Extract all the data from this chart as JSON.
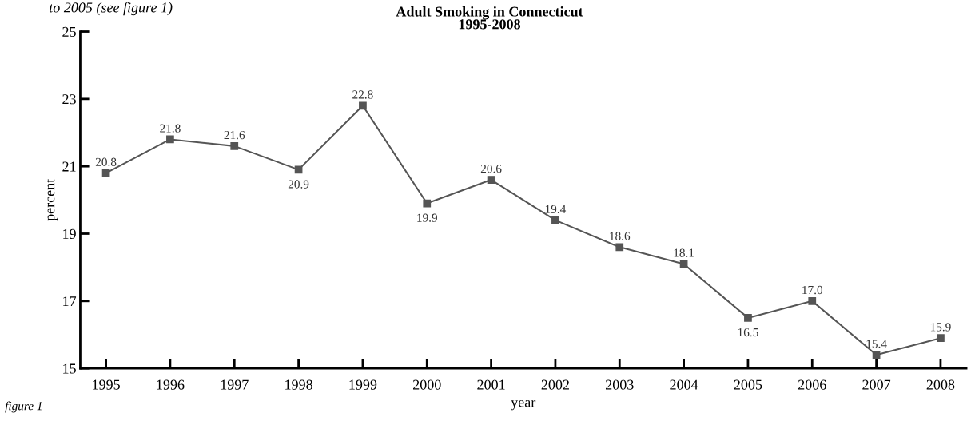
{
  "chart_data": {
    "type": "line",
    "title": "Adult Smoking in Connecticut",
    "subtitle": "1995-2008",
    "xlabel": "year",
    "ylabel": "percent",
    "annotations": [
      "to 2005 (see figure 1)",
      "figure 1"
    ],
    "categories": [
      "1995",
      "1996",
      "1997",
      "1998",
      "1999",
      "2000",
      "2001",
      "2002",
      "2003",
      "2004",
      "2005",
      "2006",
      "2007",
      "2008"
    ],
    "series": [
      {
        "color": "#555555",
        "values": [
          20.8,
          21.8,
          21.6,
          20.9,
          22.8,
          19.9,
          20.6,
          19.4,
          18.6,
          18.1,
          16.5,
          17.0,
          15.4,
          15.9
        ]
      }
    ],
    "value_labels": [
      "20.8",
      "21.8",
      "21.6",
      "20.9",
      "22.8",
      "19.9",
      "20.6",
      "19.4",
      "18.6",
      "18.1",
      "16.5",
      "17.0",
      "15.4",
      "15.9"
    ],
    "ylim": [
      15,
      25
    ],
    "yticks": [
      15,
      17,
      19,
      21,
      23,
      25
    ],
    "grid": false,
    "legend": false,
    "marker": "square",
    "line_style": "solid"
  }
}
